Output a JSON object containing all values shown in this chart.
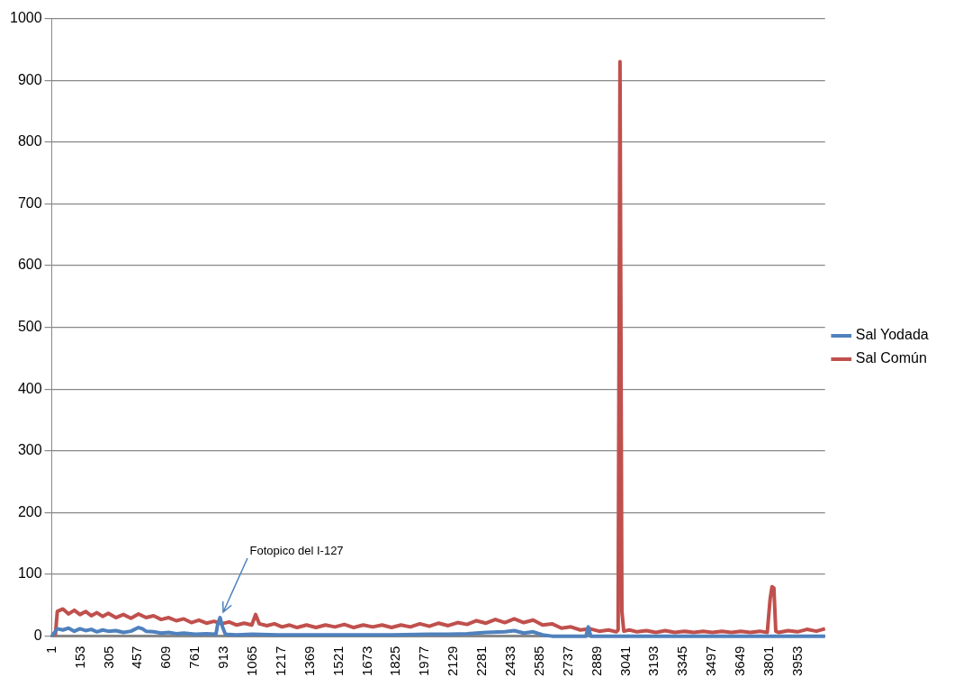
{
  "chart_data": {
    "type": "line",
    "xlim": [
      1,
      4096
    ],
    "xticks": [
      1,
      153,
      305,
      457,
      609,
      761,
      913,
      1065,
      1217,
      1369,
      1521,
      1673,
      1825,
      1977,
      2129,
      2281,
      2433,
      2585,
      2737,
      2889,
      3041,
      3193,
      3345,
      3497,
      3649,
      3801,
      3953
    ],
    "ylim": [
      0,
      1000
    ],
    "yticks": [
      0,
      100,
      200,
      300,
      400,
      500,
      600,
      700,
      800,
      900,
      1000
    ],
    "grid": "y",
    "legend": "right",
    "marker": "none",
    "line_style": "solid",
    "annotations": [
      {
        "text": "Fotopico del I-127",
        "x": 892,
        "y": 30
      }
    ],
    "series": [
      {
        "name": "Sal Yodada",
        "color": "#4f81bd",
        "x": [
          1,
          30,
          60,
          90,
          120,
          150,
          180,
          210,
          240,
          270,
          300,
          340,
          380,
          420,
          460,
          480,
          500,
          540,
          580,
          620,
          660,
          700,
          760,
          820,
          870,
          880,
          892,
          905,
          920,
          980,
          1060,
          1200,
          1400,
          1600,
          1800,
          2000,
          2100,
          2200,
          2300,
          2400,
          2450,
          2500,
          2550,
          2600,
          2650,
          2830,
          2842,
          2855,
          4096
        ],
        "values": [
          0,
          12,
          10,
          13,
          8,
          12,
          9,
          11,
          7,
          10,
          8,
          9,
          6,
          8,
          14,
          12,
          8,
          7,
          5,
          6,
          4,
          5,
          3,
          4,
          3,
          20,
          30,
          15,
          3,
          2,
          3,
          2,
          2,
          2,
          2,
          3,
          3,
          4,
          6,
          7,
          9,
          5,
          7,
          2,
          0,
          0,
          15,
          0,
          0
        ]
      },
      {
        "name": "Sal Común",
        "color": "#c0504d",
        "x": [
          1,
          20,
          30,
          60,
          90,
          120,
          150,
          180,
          210,
          240,
          270,
          300,
          340,
          380,
          420,
          460,
          500,
          540,
          580,
          620,
          660,
          700,
          740,
          780,
          820,
          860,
          900,
          940,
          980,
          1020,
          1060,
          1080,
          1100,
          1140,
          1180,
          1220,
          1260,
          1300,
          1350,
          1400,
          1450,
          1500,
          1550,
          1600,
          1650,
          1700,
          1750,
          1800,
          1850,
          1900,
          1950,
          2000,
          2050,
          2100,
          2150,
          2200,
          2250,
          2300,
          2350,
          2400,
          2450,
          2500,
          2550,
          2600,
          2650,
          2700,
          2750,
          2800,
          2850,
          2900,
          2950,
          2990,
          3000,
          3010,
          3020,
          3030,
          3060,
          3100,
          3150,
          3200,
          3250,
          3300,
          3350,
          3400,
          3450,
          3500,
          3550,
          3600,
          3650,
          3700,
          3750,
          3790,
          3805,
          3815,
          3825,
          3835,
          3850,
          3900,
          3950,
          4000,
          4050,
          4096
        ],
        "values": [
          3,
          3,
          40,
          44,
          36,
          42,
          35,
          40,
          33,
          38,
          32,
          37,
          30,
          35,
          29,
          36,
          30,
          33,
          27,
          30,
          25,
          28,
          22,
          26,
          21,
          24,
          20,
          23,
          18,
          21,
          18,
          35,
          20,
          17,
          20,
          15,
          18,
          14,
          18,
          14,
          18,
          15,
          19,
          14,
          18,
          15,
          18,
          14,
          18,
          15,
          20,
          16,
          21,
          17,
          22,
          19,
          25,
          21,
          27,
          22,
          28,
          22,
          26,
          18,
          20,
          13,
          15,
          10,
          12,
          8,
          10,
          7,
          10,
          930,
          40,
          8,
          10,
          7,
          9,
          6,
          9,
          6,
          8,
          6,
          8,
          6,
          8,
          6,
          8,
          6,
          8,
          6,
          60,
          80,
          78,
          8,
          6,
          9,
          7,
          11,
          8,
          12
        ]
      }
    ]
  }
}
